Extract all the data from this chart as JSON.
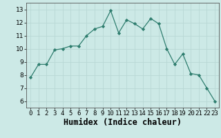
{
  "x": [
    0,
    1,
    2,
    3,
    4,
    5,
    6,
    7,
    8,
    9,
    10,
    11,
    12,
    13,
    14,
    15,
    16,
    17,
    18,
    19,
    20,
    21,
    22,
    23
  ],
  "y": [
    7.8,
    8.8,
    8.8,
    9.9,
    10.0,
    10.2,
    10.2,
    11.0,
    11.5,
    11.7,
    12.9,
    11.2,
    12.2,
    11.9,
    11.5,
    12.3,
    11.9,
    10.0,
    8.8,
    9.6,
    8.1,
    8.0,
    7.0,
    6.0
  ],
  "xlabel": "Humidex (Indice chaleur)",
  "ylim": [
    5.5,
    13.5
  ],
  "xlim": [
    -0.5,
    23.5
  ],
  "yticks": [
    6,
    7,
    8,
    9,
    10,
    11,
    12,
    13
  ],
  "xtick_labels": [
    "0",
    "1",
    "2",
    "3",
    "4",
    "5",
    "6",
    "7",
    "8",
    "9",
    "10",
    "11",
    "12",
    "13",
    "14",
    "15",
    "16",
    "17",
    "18",
    "19",
    "20",
    "21",
    "22",
    "23"
  ],
  "line_color": "#2e7d6e",
  "marker": "D",
  "marker_size": 2.2,
  "bg_color": "#cce9e6",
  "grid_color": "#b8d8d5",
  "tick_label_fontsize": 6.5,
  "xlabel_fontsize": 8.5
}
